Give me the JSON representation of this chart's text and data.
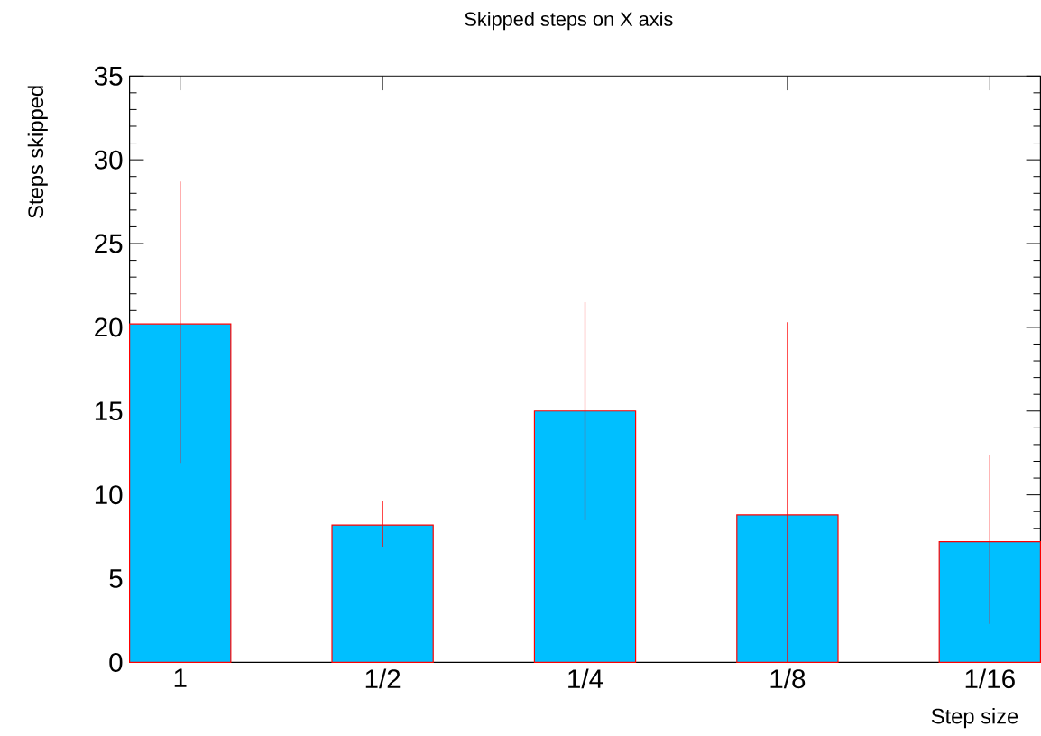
{
  "chart_data": {
    "type": "bar",
    "title": "Skipped steps on X axis",
    "xlabel": "Step size",
    "ylabel": "Steps skipped",
    "categories": [
      "1",
      "1/2",
      "1/4",
      "1/8",
      "1/16"
    ],
    "series": [
      {
        "color": "#00bfff",
        "values": [
          20.2,
          8.2,
          15.0,
          8.8,
          7.2
        ],
        "errors": [
          [
            11.9,
            28.7
          ],
          [
            6.9,
            9.6
          ],
          [
            8.5,
            21.5
          ],
          [
            0,
            20.3
          ],
          [
            2.3,
            12.4
          ]
        ]
      }
    ],
    "ylim": [
      0,
      35
    ],
    "yticks": [
      0,
      5,
      10,
      15,
      20,
      25,
      30,
      35
    ]
  }
}
